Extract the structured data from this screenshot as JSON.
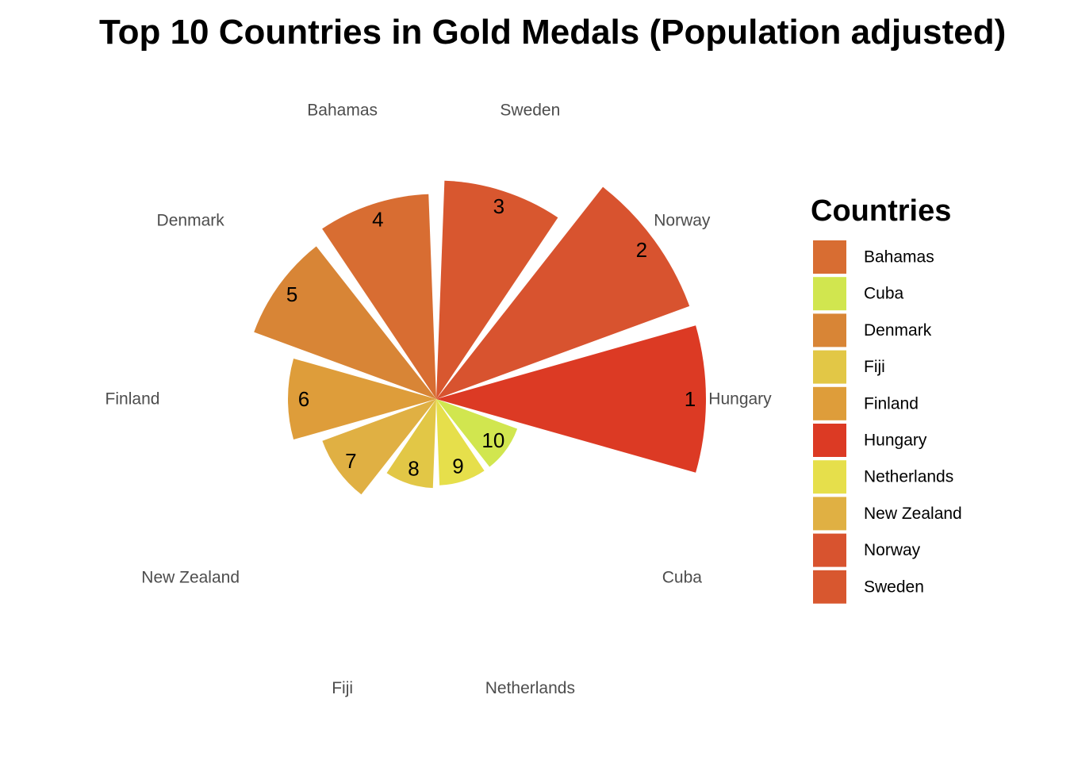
{
  "chart_data": {
    "type": "bar",
    "coord": "polar",
    "title": "Top 10 Countries in Gold Medals (Population adjusted)",
    "categories": [
      "Hungary",
      "Norway",
      "Sweden",
      "Bahamas",
      "Denmark",
      "Finland",
      "New Zealand",
      "Fiji",
      "Netherlands",
      "Cuba"
    ],
    "ranks": [
      "1",
      "2",
      "3",
      "4",
      "5",
      "6",
      "7",
      "8",
      "9",
      "10"
    ],
    "values": [
      100,
      100,
      81,
      76,
      72,
      55,
      45,
      33,
      32,
      32
    ],
    "colors": [
      "#dc3a24",
      "#d8532f",
      "#d8572f",
      "#d86d32",
      "#d88536",
      "#de9d3a",
      "#e0b043",
      "#e2c746",
      "#e6df4b",
      "#d1e64f"
    ],
    "legend": {
      "title": "Countries",
      "items": [
        {
          "label": "Bahamas",
          "color": "#d86d32"
        },
        {
          "label": "Cuba",
          "color": "#d1e64f"
        },
        {
          "label": "Denmark",
          "color": "#d88536"
        },
        {
          "label": "Fiji",
          "color": "#e2c746"
        },
        {
          "label": "Finland",
          "color": "#de9d3a"
        },
        {
          "label": "Hungary",
          "color": "#dc3a24"
        },
        {
          "label": "Netherlands",
          "color": "#e6df4b"
        },
        {
          "label": "New Zealand",
          "color": "#e0b043"
        },
        {
          "label": "Norway",
          "color": "#d8532f"
        },
        {
          "label": "Sweden",
          "color": "#d8572f"
        }
      ],
      "position": "right"
    },
    "grid": false
  }
}
